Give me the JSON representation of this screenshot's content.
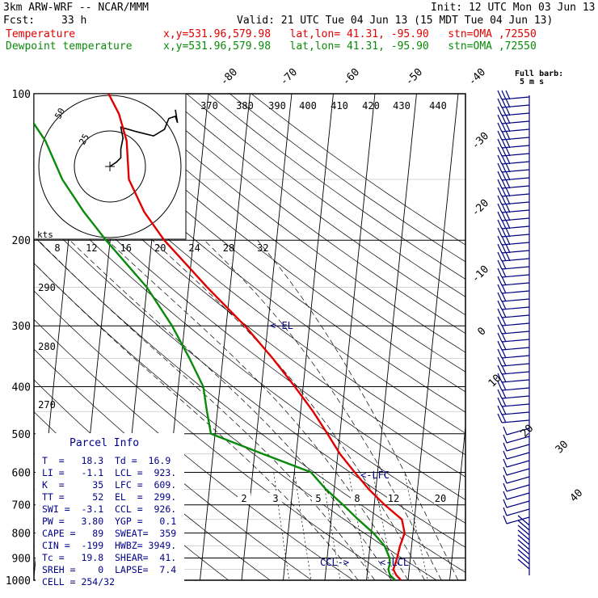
{
  "header": {
    "model": "3km ARW-WRF -- NCAR/MMM",
    "init": "Init: 12 UTC Mon 03 Jun 13",
    "fcst_label": "Fcst:",
    "fcst_value": "33 h",
    "valid": "Valid: 21 UTC Tue 04 Jun 13 (15 MDT Tue 04 Jun 13)",
    "temp_name": "Temperature",
    "temp_info": "x,y=531.96,579.98   lat,lon= 41.31, -95.90   stn=OMA ,72550",
    "dew_name": "Dewpoint temperature",
    "dew_info": "x,y=531.96,579.98   lat,lon= 41.31, -95.90   stn=OMA ,72550"
  },
  "colors": {
    "temperature": "#e00000",
    "dewpoint": "#0a8a0a",
    "barbs": "#000080",
    "grid": "#000000"
  },
  "chart_data": {
    "type": "line",
    "y_scale": "log-pressure",
    "ylim_hpa": [
      1000,
      100
    ],
    "pressure_ticks": [
      1000,
      900,
      800,
      700,
      600,
      500,
      400,
      300,
      200,
      100
    ],
    "isotherm_labels_top": [
      "-80",
      "-70",
      "-60",
      "-50",
      "-40"
    ],
    "isotherm_labels_right": [
      "-30",
      "-20",
      "-10",
      "0",
      "10",
      "20",
      "30",
      "40"
    ],
    "theta_labels": [
      "370",
      "380",
      "390",
      "400",
      "410",
      "420",
      "430",
      "440",
      "290",
      "280",
      "270"
    ],
    "mixing_ratio_labels": [
      "2",
      "3",
      "5",
      "8",
      "12",
      "20"
    ],
    "hodograph": {
      "axis_label": "kts",
      "axis_ticks": [
        "8",
        "12",
        "16",
        "20",
        "24",
        "28",
        "32"
      ],
      "ring_labels": [
        "25",
        "50"
      ]
    },
    "barb_legend": [
      "Full barb:",
      "5 m s"
    ],
    "levels_annotations": [
      {
        "label": "<-EL",
        "p": 300
      },
      {
        "label": "<-LFC",
        "p": 600
      },
      {
        "label": "<-LCL",
        "p": 920
      },
      {
        "label": "CCL->",
        "p": 920
      }
    ],
    "series": [
      {
        "name": "Temperature",
        "points": [
          [
            1000,
            18.3
          ],
          [
            975,
            17.0
          ],
          [
            950,
            16.2
          ],
          [
            925,
            16.5
          ],
          [
            900,
            16.8
          ],
          [
            850,
            17.2
          ],
          [
            800,
            18.0
          ],
          [
            750,
            17.0
          ],
          [
            700,
            12.5
          ],
          [
            650,
            8.3
          ],
          [
            600,
            4.5
          ],
          [
            550,
            0.5
          ],
          [
            500,
            -3.0
          ],
          [
            450,
            -7.0
          ],
          [
            400,
            -12.0
          ],
          [
            350,
            -18.0
          ],
          [
            300,
            -25.5
          ],
          [
            250,
            -35.5
          ],
          [
            200,
            -47.0
          ],
          [
            175,
            -52.5
          ],
          [
            150,
            -57.0
          ],
          [
            125,
            -58.5
          ],
          [
            110,
            -61.0
          ],
          [
            100,
            -64.0
          ]
        ]
      },
      {
        "name": "Dewpoint temperature",
        "points": [
          [
            1000,
            16.9
          ],
          [
            975,
            15.5
          ],
          [
            950,
            15.0
          ],
          [
            925,
            15.2
          ],
          [
            900,
            15.0
          ],
          [
            850,
            13.5
          ],
          [
            800,
            10.5
          ],
          [
            750,
            6.5
          ],
          [
            700,
            2.5
          ],
          [
            650,
            -2.0
          ],
          [
            600,
            -6.0
          ],
          [
            550,
            -18.0
          ],
          [
            500,
            -31.0
          ],
          [
            450,
            -32.5
          ],
          [
            400,
            -34.0
          ],
          [
            350,
            -38.0
          ],
          [
            300,
            -43.0
          ],
          [
            250,
            -50.0
          ],
          [
            200,
            -61.0
          ],
          [
            175,
            -67.0
          ],
          [
            150,
            -73.0
          ],
          [
            125,
            -78.0
          ],
          [
            110,
            -83.0
          ],
          [
            100,
            -87.0
          ]
        ]
      }
    ],
    "hodograph_trace": [
      [
        0,
        0
      ],
      [
        3,
        -2
      ],
      [
        5,
        -4
      ],
      [
        5,
        -8
      ],
      [
        6,
        -13
      ],
      [
        5,
        -18
      ],
      [
        12,
        -16
      ],
      [
        20,
        -14
      ],
      [
        25,
        -17
      ],
      [
        27,
        -22
      ],
      [
        30,
        -23
      ],
      [
        31,
        -20
      ],
      [
        30,
        -26
      ]
    ]
  },
  "parcel_info": {
    "title": "Parcel Info",
    "rows": [
      "T  =   18.3  Td =  16.9",
      "LI =   -1.1  LCL =  923.",
      "K  =     35  LFC =  609.",
      "TT =     52  EL  =  299.",
      "SWI =  -3.1  CCL =  926.",
      "PW =   3.80  YGP =   0.1",
      "CAPE =   89  SWEAT=  359",
      "CIN =  -199  HWBZ= 3949.",
      "Tc =   19.8  SHEAR=  41.",
      "SREH =    0  LAPSE=  7.4",
      "CELL = 254/32"
    ]
  }
}
